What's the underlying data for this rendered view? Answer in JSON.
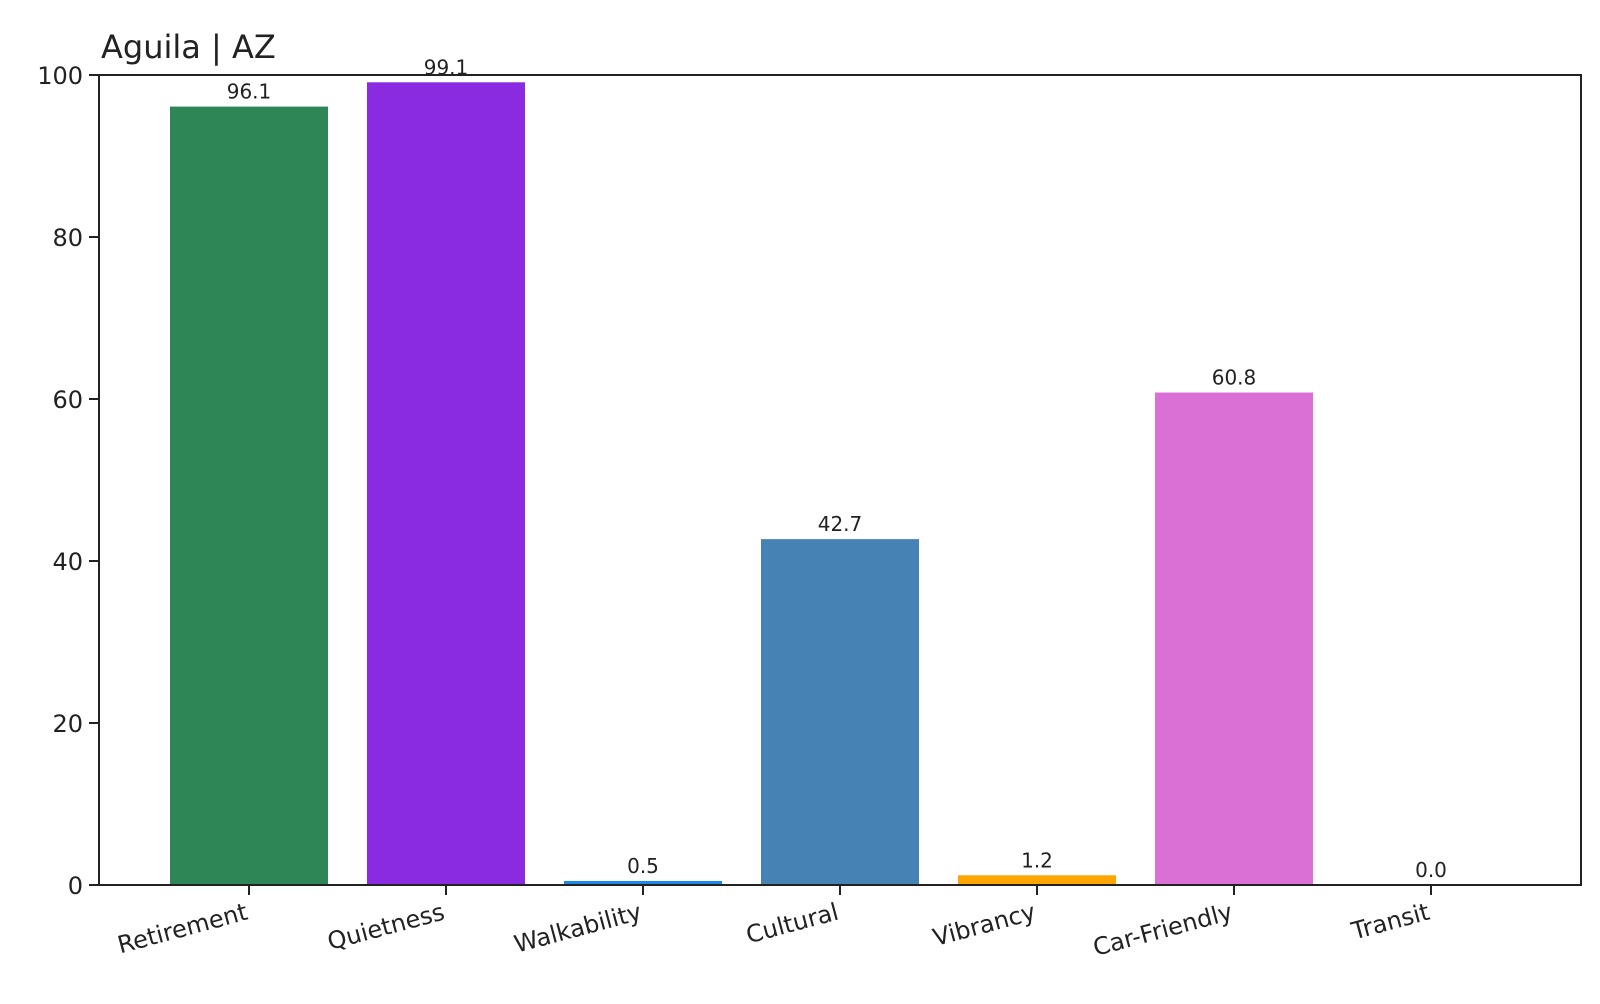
{
  "chart_data": {
    "type": "bar",
    "title": "Aguila | AZ",
    "xlabel": "",
    "ylabel": "",
    "categories": [
      "Retirement",
      "Quietness",
      "Walkability",
      "Cultural",
      "Vibrancy",
      "Car-Friendly",
      "Transit"
    ],
    "values": [
      96.1,
      99.1,
      0.5,
      42.7,
      1.2,
      60.8,
      0.0
    ],
    "value_labels": [
      "96.1",
      "99.1",
      "0.5",
      "42.7",
      "1.2",
      "60.8",
      "0.0"
    ],
    "colors": [
      "#2e8555",
      "#8a2be2",
      "#1e88e5",
      "#4682b4",
      "#ffa500",
      "#da70d6",
      "#7f7f7f"
    ],
    "ylim": [
      0,
      100
    ],
    "yticks": [
      0,
      20,
      40,
      60,
      80,
      100
    ],
    "ytick_labels": [
      "0",
      "20",
      "40",
      "60",
      "80",
      "100"
    ],
    "grid": false,
    "legend": "none"
  }
}
